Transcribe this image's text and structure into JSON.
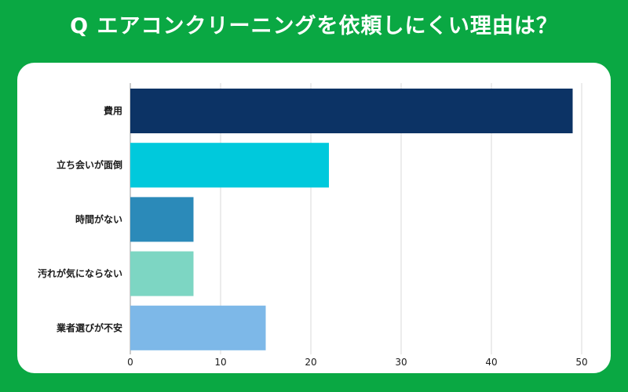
{
  "title": "Q エアコンクリーニングを依頼しにくい理由は？",
  "colors": {
    "background": "#0aa843",
    "card": "#ffffff",
    "grid": "#d9d9d9"
  },
  "chart_data": {
    "type": "bar",
    "orientation": "horizontal",
    "categories": [
      "費用",
      "立ち会いが面倒",
      "時間がない",
      "汚れが気にならない",
      "業者選びが不安"
    ],
    "values": [
      49,
      22,
      7,
      7,
      15
    ],
    "bar_colors": [
      "#0c3365",
      "#00c9dc",
      "#2b8ab9",
      "#7dd6c3",
      "#7db8e8"
    ],
    "xlim": [
      0,
      50
    ],
    "xticks": [
      0,
      10,
      20,
      30,
      40,
      50
    ],
    "grid": true,
    "legend": false
  }
}
